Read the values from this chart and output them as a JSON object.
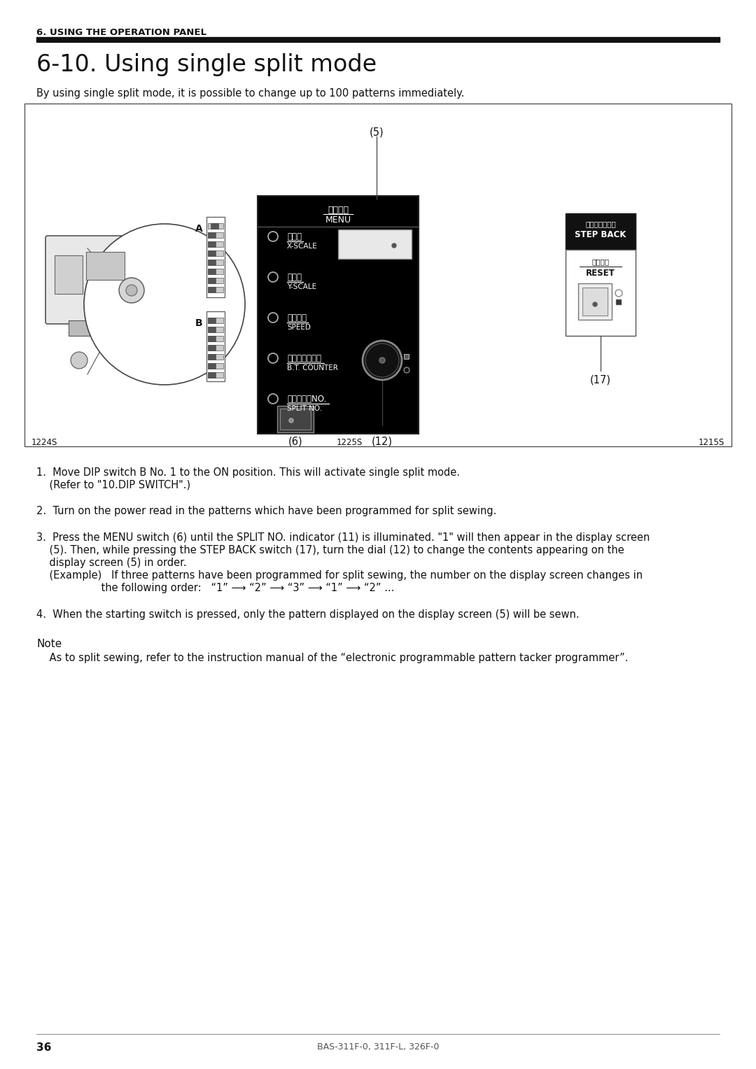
{
  "page_bg": "#ffffff",
  "section_header": "6. USING THE OPERATION PANEL",
  "title": "6-10. Using single split mode",
  "intro_text": "By using single split mode, it is possible to change up to 100 patterns immediately.",
  "step1_line1": "1.  Move DIP switch B No. 1 to the ON position. This will activate single split mode.",
  "step1_line2": "    (Refer to \"10.DIP SWITCH\".)",
  "step2": "2.  Turn on the power read in the patterns which have been programmed for split sewing.",
  "step3_line1": "3.  Press the MENU switch (6) until the SPLIT NO. indicator (11) is illuminated. \"1\" will then appear in the display screen",
  "step3_line2": "    (5). Then, while pressing the STEP BACK switch (17), turn the dial (12) to change the contents appearing on the",
  "step3_line3": "    display screen (5) in order.",
  "step3_example1": "    (Example)   If three patterns have been programmed for split sewing, the number on the display screen changes in",
  "step3_example2": "                    the following order:   “1” ⟶ “2” ⟶ “3” ⟶ “1” ⟶ “2” ...",
  "step4": "4.  When the starting switch is pressed, only the pattern displayed on the display screen (5) will be sewn.",
  "note_title": "Note",
  "note_text": "    As to split sewing, refer to the instruction manual of the “electronic programmable pattern tacker programmer”.",
  "footer_text": "BAS-311F-0, 311F-L, 326F-0",
  "page_number": "36",
  "menu_title_jp": "メニュー",
  "menu_title_en": "MENU",
  "menu_items": [
    [
      "機倍率",
      "X-SCALE"
    ],
    [
      "縦倍率",
      "Y-SCALE"
    ],
    [
      "スピード",
      "SPEED"
    ],
    [
      "下糸カウンター",
      "B.T. COUNTER"
    ],
    [
      "スプリットNO.",
      "SPLIT NO."
    ]
  ],
  "label_A": "A",
  "label_B": "B",
  "stepback_jp": "ステップバック",
  "stepback_en": "STEP BACK",
  "reset_jp": "リセット",
  "reset_en": "RESET"
}
